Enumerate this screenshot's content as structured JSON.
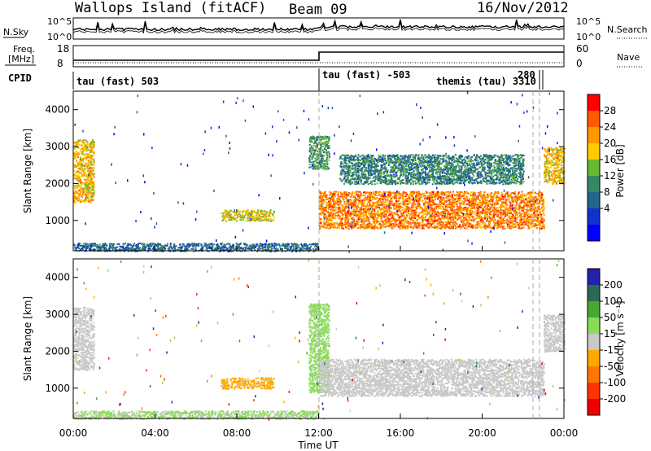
{
  "header": {
    "site_title": "Wallops Island (fitACF)",
    "beam": "Beam 09",
    "date": "16/Nov/2012"
  },
  "noise_panel": {
    "left_label": "N.Sky",
    "right_label": "N.Search",
    "tick_top": "10^5",
    "tick_bottom": "10^0"
  },
  "freq_panel": {
    "left_label_1": "Freq.",
    "left_label_2": "[MHz]",
    "right_label": "Nave",
    "left_ticks": [
      "18",
      "8"
    ],
    "right_ticks": [
      "60",
      "0"
    ]
  },
  "cpid_panel": {
    "label": "CPID",
    "segments": [
      "tau (fast) 503",
      "tau (fast) -503",
      "themis (tau) 3310",
      "280"
    ]
  },
  "axes": {
    "ylabel": "Slant Range [km]",
    "xlabel": "Time UT",
    "yticks": [
      "4000",
      "3000",
      "2000",
      "1000"
    ],
    "xticks": [
      "00:00",
      "04:00",
      "08:00",
      "12:00",
      "16:00",
      "20:00",
      "00:00"
    ]
  },
  "colorbars": {
    "power": {
      "label": "Power [dB]",
      "ticks": [
        "28",
        "24",
        "20",
        "16",
        "12",
        "8",
        "4"
      ],
      "colors": [
        "#ff0000",
        "#ff5a00",
        "#ff9900",
        "#ffcc00",
        "#66bb33",
        "#338866",
        "#226688",
        "#1133cc",
        "#0000ff"
      ]
    },
    "velocity": {
      "label": "Velocity [m s⁻¹]",
      "ticks": [
        "200",
        "100",
        "50",
        "15",
        "-15",
        "-50",
        "-100",
        "-200"
      ],
      "colors": [
        "#2222aa",
        "#2a6a55",
        "#44aa33",
        "#88dd55",
        "#c8c8c8",
        "#ffaa00",
        "#ff7700",
        "#ff3300",
        "#ee0000"
      ]
    }
  },
  "chart_data": {
    "type": "heatmap",
    "title": "Wallops Island (fitACF)",
    "xlabel": "Time UT",
    "ylabel": "Slant Range [km]",
    "x_range_hours": [
      0,
      24
    ],
    "y_range_km": [
      180,
      4500
    ],
    "power_regions": [
      {
        "t": [
          0.0,
          1.0
        ],
        "r": [
          1500,
          3200
        ],
        "level_db": 20
      },
      {
        "t": [
          7.2,
          9.8
        ],
        "r": [
          1000,
          1300
        ],
        "level_db": 18
      },
      {
        "t": [
          11.5,
          12.5
        ],
        "r": [
          2400,
          3300
        ],
        "level_db": 12
      },
      {
        "t": [
          12.0,
          23.0
        ],
        "r": [
          800,
          1800
        ],
        "level_db": 24
      },
      {
        "t": [
          13.0,
          22.0
        ],
        "r": [
          2000,
          2800
        ],
        "level_db": 10
      },
      {
        "t": [
          23.0,
          24.0
        ],
        "r": [
          2000,
          3000
        ],
        "level_db": 20
      },
      {
        "t": [
          0.0,
          12.0
        ],
        "r": [
          180,
          400
        ],
        "level_db": 8
      }
    ],
    "velocity_regions": [
      {
        "t": [
          0.0,
          1.0
        ],
        "r": [
          1500,
          3200
        ],
        "velocity": 0
      },
      {
        "t": [
          7.2,
          9.8
        ],
        "r": [
          1000,
          1300
        ],
        "velocity": -40
      },
      {
        "t": [
          11.5,
          12.5
        ],
        "r": [
          900,
          3300
        ],
        "velocity": 40
      },
      {
        "t": [
          12.0,
          23.0
        ],
        "r": [
          800,
          1800
        ],
        "velocity": 0
      },
      {
        "t": [
          23.0,
          24.0
        ],
        "r": [
          2000,
          3000
        ],
        "velocity": 0
      },
      {
        "t": [
          0.0,
          12.0
        ],
        "r": [
          180,
          400
        ],
        "velocity": 30
      }
    ],
    "frequency_mhz": [
      {
        "t": [
          0,
          12
        ],
        "value": 10
      },
      {
        "t": [
          12,
          24
        ],
        "value": 15
      }
    ],
    "cpid_changes_hours": [
      12.0,
      22.5,
      23.0
    ]
  }
}
